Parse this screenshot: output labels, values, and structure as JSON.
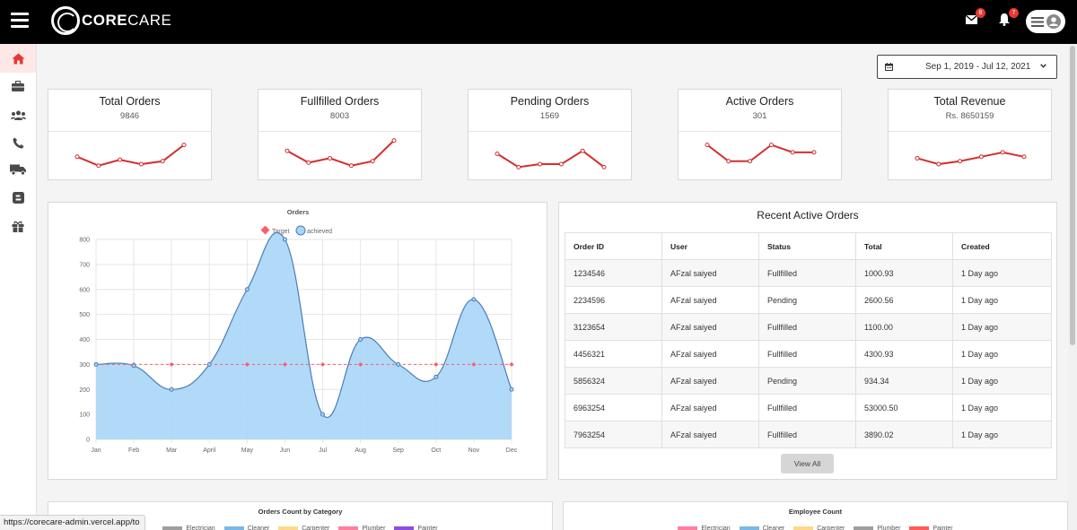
{
  "brand": {
    "name_bold": "CORE",
    "name_thin": "CARE"
  },
  "header": {
    "mail_badge": "8",
    "notif_badge": "7"
  },
  "sidebar": {
    "items": [
      {
        "icon": "home-icon",
        "active": true
      },
      {
        "icon": "briefcase-icon"
      },
      {
        "icon": "users-icon"
      },
      {
        "icon": "phone-icon"
      },
      {
        "icon": "truck-icon"
      },
      {
        "icon": "blogger-icon"
      },
      {
        "icon": "gift-icon"
      }
    ]
  },
  "date_range": "Sep 1, 2019 - Jul 12, 2021",
  "stats": [
    {
      "title": "Total Orders",
      "value": "9846",
      "spark": [
        8,
        2,
        6,
        3,
        5,
        16
      ]
    },
    {
      "title": "Fullfilled Orders",
      "value": "8003",
      "spark": [
        12,
        4,
        7,
        2,
        5,
        19
      ]
    },
    {
      "title": "Pending Orders",
      "value": "1569",
      "spark": [
        10,
        1,
        3,
        3,
        12,
        1
      ]
    },
    {
      "title": "Active Orders",
      "value": "301",
      "spark": [
        16,
        5,
        5,
        16,
        11,
        11
      ]
    },
    {
      "title": "Total Revenue",
      "value": "Rs. 8650159",
      "spark": [
        7,
        3,
        5,
        8,
        11,
        8
      ]
    }
  ],
  "chart_data": {
    "type": "line",
    "title": "Orders",
    "categories": [
      "Jan",
      "Feb",
      "Mar",
      "April",
      "May",
      "Jun",
      "Jul",
      "Aug",
      "Sep",
      "Oct",
      "Nov",
      "Dec"
    ],
    "series": [
      {
        "name": "Target",
        "values": [
          300,
          300,
          300,
          300,
          300,
          300,
          300,
          300,
          300,
          300,
          300,
          300
        ],
        "color": "#ff5b6b",
        "style": "dashed"
      },
      {
        "name": "achieved",
        "values": [
          300,
          295,
          200,
          300,
          600,
          800,
          100,
          400,
          300,
          250,
          560,
          200
        ],
        "color": "#4e7bb5",
        "fill": "#a8d6f7"
      }
    ],
    "ylim": [
      0,
      800
    ],
    "yticks": [
      0,
      100,
      200,
      300,
      400,
      500,
      600,
      700,
      800
    ],
    "legend": "top",
    "grid": true
  },
  "recent": {
    "title": "Recent Active Orders",
    "columns": [
      "Order ID",
      "User",
      "Status",
      "Total",
      "Created"
    ],
    "rows": [
      [
        "1234546",
        "AFzal saiyed",
        "Fullfilled",
        "1000.93",
        "1 Day ago"
      ],
      [
        "2234596",
        "AFzal saiyed",
        "Pending",
        "2600.56",
        "1 Day ago"
      ],
      [
        "3123654",
        "AFzal saiyed",
        "Fullfilled",
        "1100.00",
        "1 Day ago"
      ],
      [
        "4456321",
        "AFzal saiyed",
        "Fullfilled",
        "4300.93",
        "1 Day ago"
      ],
      [
        "5856324",
        "AFzal saiyed",
        "Pending",
        "934.34",
        "1 Day ago"
      ],
      [
        "6963254",
        "AFzal saiyed",
        "Fullfilled",
        "53000.50",
        "1 Day ago"
      ],
      [
        "7963254",
        "AFzal saiyed",
        "Fullfilled",
        "3890.02",
        "1 Day ago"
      ]
    ],
    "view_all": "View All"
  },
  "category_chart": {
    "title": "Orders Count by Category",
    "legend": [
      {
        "label": "Electrician",
        "color": "#9e9e9e"
      },
      {
        "label": "Cleaner",
        "color": "#7ab8e8"
      },
      {
        "label": "Carpenter",
        "color": "#ffd98a"
      },
      {
        "label": "Plumber",
        "color": "#ff7f9f"
      },
      {
        "label": "Painter",
        "color": "#8a4fe0"
      }
    ]
  },
  "employee_chart": {
    "title": "Employee Count",
    "legend": [
      {
        "label": "Electrician",
        "color": "#ff7f9f"
      },
      {
        "label": "Cleaner",
        "color": "#7ab8e8"
      },
      {
        "label": "Carpenter",
        "color": "#ffd98a"
      },
      {
        "label": "Plumber",
        "color": "#9e9e9e"
      },
      {
        "label": "Painter",
        "color": "#ff5b5b"
      }
    ]
  },
  "status_url": "https://corecare-admin.vercel.app/to"
}
